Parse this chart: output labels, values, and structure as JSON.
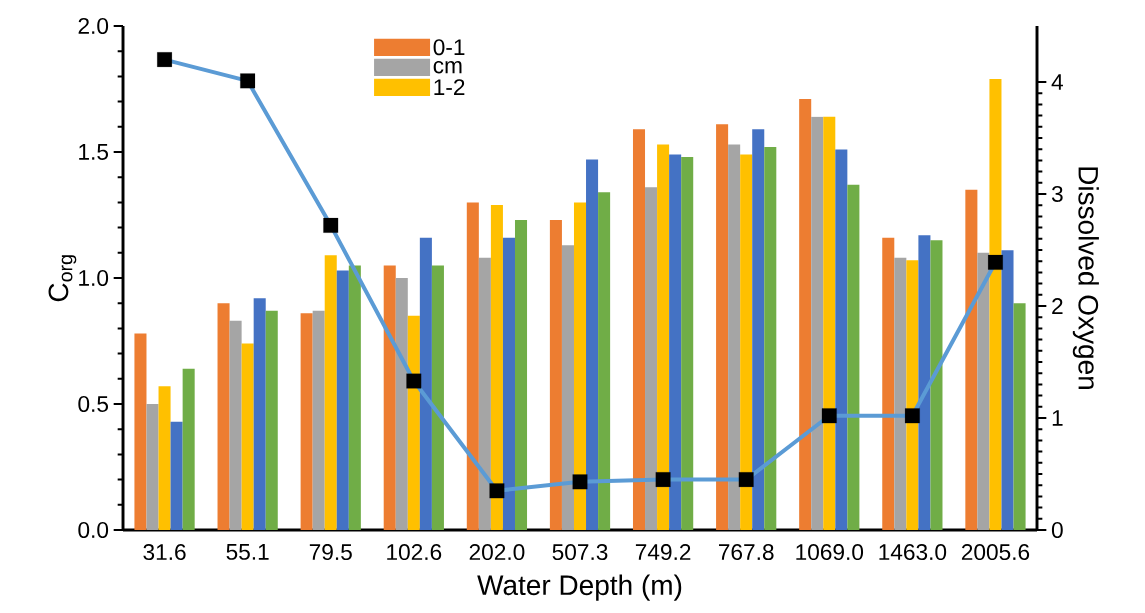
{
  "chart_data": {
    "type": "bar",
    "xlabel": "Water Depth (m)",
    "ylabel": "C$_{org}$",
    "y2label": "Dissolved Oxygen",
    "categories": [
      "31.6",
      "55.1",
      "79.5",
      "102.6",
      "202.0",
      "507.3",
      "749.2",
      "767.8",
      "1069.0",
      "1463.0",
      "2005.6"
    ],
    "series": [
      {
        "name": "0-1",
        "color": "#ed7d31",
        "values": [
          0.78,
          0.9,
          0.86,
          1.05,
          1.3,
          1.23,
          1.59,
          1.61,
          1.71,
          1.16,
          1.35
        ]
      },
      {
        "name": "cm",
        "color": "#a5a5a5",
        "values": [
          0.5,
          0.83,
          0.87,
          1.0,
          1.08,
          1.13,
          1.36,
          1.53,
          1.64,
          1.08,
          1.1
        ]
      },
      {
        "name": "1-2",
        "color": "#ffc000",
        "values": [
          0.57,
          0.74,
          1.09,
          0.85,
          1.29,
          1.3,
          1.53,
          1.49,
          1.64,
          1.07,
          1.79
        ]
      },
      {
        "color": "#4472c4",
        "values": [
          0.43,
          0.92,
          1.03,
          1.16,
          1.16,
          1.47,
          1.49,
          1.59,
          1.51,
          1.17,
          1.11
        ]
      },
      {
        "color": "#70ad47",
        "values": [
          0.64,
          0.87,
          1.05,
          1.05,
          1.23,
          1.34,
          1.48,
          1.52,
          1.37,
          1.15,
          0.9
        ]
      },
      {
        "type": "line",
        "axis": "y2",
        "color": "#5b9bd5",
        "marker": "square",
        "line_style": "solid",
        "values": [
          4.2,
          4.01,
          2.72,
          1.33,
          0.35,
          0.43,
          0.45,
          0.45,
          1.02,
          1.02,
          2.39
        ]
      }
    ],
    "ylim": [
      0,
      2.0
    ],
    "yticks": [
      {
        "value": 0,
        "label": "0.0"
      },
      0.5,
      {
        "value": 1,
        "label": "1.0"
      },
      1.5,
      {
        "value": 2,
        "label": "2.0"
      }
    ],
    "y2lim": [
      0,
      4.5
    ],
    "y2ticks": [
      0,
      1,
      2,
      3,
      4
    ],
    "legend": "top",
    "grid": false
  }
}
